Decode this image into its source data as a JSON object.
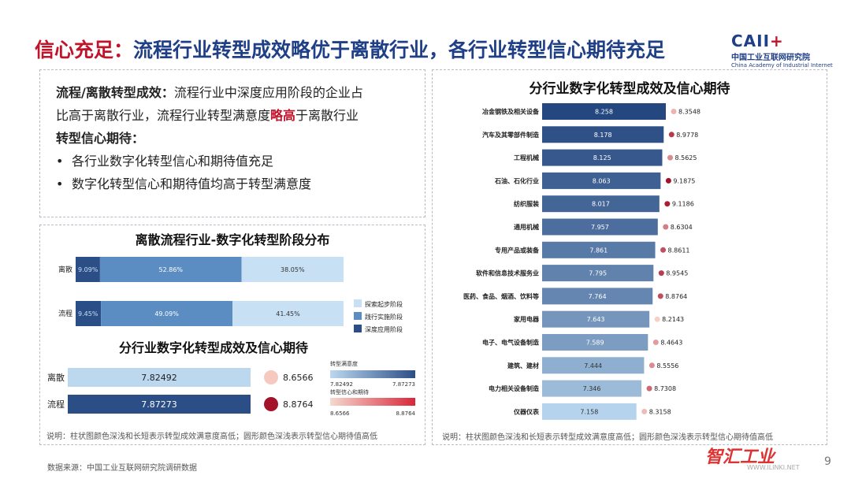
{
  "title": {
    "accent": "信心充足：",
    "main": "流程行业转型成效略优于离散行业，各行业转型信心期待充足"
  },
  "logo": {
    "mark": "CAII",
    "mark_suffix": "+",
    "cn": "中国工业互联网研究院",
    "en": "China Academy of Industrial Internet"
  },
  "summary": {
    "line1_bold": "流程/离散转型成效：",
    "line1_rest": "流程行业中深度应用阶段的企业占",
    "line2_a": "比高于离散行业，流程行业转型满意度",
    "line2_red": "略高",
    "line2_b": "于离散行业",
    "line3_bold": "转型信心期待：",
    "bullet1": "各行业数字化转型信心和期待值充足",
    "bullet2": "数字化转型信心和期待值均高于转型满意度"
  },
  "stage_title": "离散流程行业-数字化转型阶段分布",
  "compare_title": "分行业数字化转型成效及信心期待",
  "right_title": "分行业数字化转型成效及信心期待",
  "note": "说明：柱状图颜色深浅和长短表示转型成效满意度高低；圆形颜色深浅表示转型信心期待值高低",
  "source": "数据来源：中国工业互联网研究院调研数据",
  "page_number": "9",
  "watermark": {
    "cn": "智汇工业",
    "en": "WWW.ILINKI.NET"
  },
  "colors": {
    "title_blue": "#1f3f86",
    "accent_red": "#c0142b",
    "dark_blue": "#2b4e86",
    "mid_blue": "#4f7cb0",
    "light_blue": "#bcd8ef"
  },
  "chart_data": [
    {
      "type": "bar",
      "orientation": "horizontal",
      "stacked": true,
      "title": "离散流程行业-数字化转型阶段分布",
      "categories": [
        "离散",
        "流程"
      ],
      "series": [
        {
          "name": "深度应用阶段",
          "values": [
            9.09,
            9.45
          ],
          "labels": [
            "9.09%",
            "9.45%"
          ],
          "color": "#2b4e86"
        },
        {
          "name": "践行实施阶段",
          "values": [
            52.86,
            49.09
          ],
          "labels": [
            "52.86%",
            "49.09%"
          ],
          "color": "#5b8cc2"
        },
        {
          "name": "探索起步阶段",
          "values": [
            38.05,
            41.45
          ],
          "labels": [
            "38.05%",
            "41.45%"
          ],
          "color": "#c8e0f4"
        }
      ],
      "legend_items": [
        "探索起步阶段",
        "践行实施阶段",
        "深度应用阶段"
      ],
      "legend": "right"
    },
    {
      "type": "bar",
      "orientation": "horizontal",
      "title": "分行业数字化转型成效及信心期待",
      "categories": [
        "离散",
        "流程"
      ],
      "satisfaction": [
        7.82492,
        7.87273
      ],
      "satisfaction_labels": [
        "7.82492",
        "7.87273"
      ],
      "confidence": [
        8.6566,
        8.8764
      ],
      "confidence_labels": [
        "8.6566",
        "8.8764"
      ],
      "scale_legend": {
        "bar_title": "转型满意度",
        "bar_min": "7.82492",
        "bar_max": "7.87273",
        "circle_title": "转型信心和期待",
        "circle_min": "8.6566",
        "circle_max": "8.8764"
      }
    },
    {
      "type": "bar",
      "orientation": "horizontal",
      "title": "分行业数字化转型成效及信心期待",
      "categories": [
        "冶金钢铁及相关设备",
        "汽车及其零部件制造",
        "工程机械",
        "石油、石化行业",
        "纺织服装",
        "通用机械",
        "专用产品或装备",
        "软件和信息技术服务业",
        "医药、食品、烟酒、饮料等",
        "家用电器",
        "电子、电气设备制造",
        "建筑、建材",
        "电力相关设备制造",
        "仪器仪表"
      ],
      "satisfaction": [
        8.258,
        8.178,
        8.125,
        8.063,
        8.017,
        7.957,
        7.861,
        7.795,
        7.764,
        7.643,
        7.589,
        7.444,
        7.346,
        7.158
      ],
      "satisfaction_labels": [
        "8.258",
        "8.178",
        "8.125",
        "8.063",
        "8.017",
        "7.957",
        "7.861",
        "7.795",
        "7.764",
        "7.643",
        "7.589",
        "7.444",
        "7.346",
        "7.158"
      ],
      "confidence": [
        8.3548,
        8.9778,
        8.5625,
        9.1875,
        9.1186,
        8.6304,
        8.8611,
        8.9545,
        8.8764,
        8.2143,
        8.4643,
        8.5556,
        8.7308,
        8.3158
      ],
      "confidence_labels": [
        "8.3548",
        "8.9778",
        "8.5625",
        "9.1875",
        "9.1186",
        "8.6304",
        "8.8611",
        "8.9545",
        "8.8764",
        "8.2143",
        "8.4643",
        "8.5556",
        "8.7308",
        "8.3158"
      ]
    }
  ]
}
